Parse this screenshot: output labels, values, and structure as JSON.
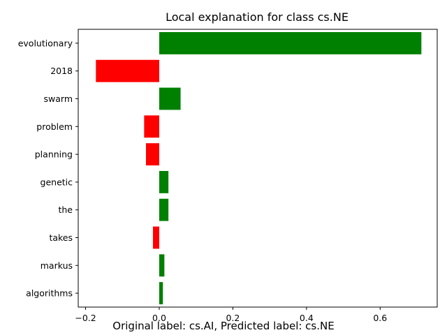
{
  "chart_data": {
    "type": "bar",
    "orientation": "horizontal",
    "title": "Local explanation for class cs.NE",
    "xlabel": "",
    "ylabel": "",
    "categories": [
      "evolutionary",
      "2018",
      "swarm",
      "problem",
      "planning",
      "genetic",
      "the",
      "takes",
      "markus",
      "algorithms"
    ],
    "values": [
      0.712,
      -0.172,
      0.058,
      -0.041,
      -0.036,
      0.025,
      0.025,
      -0.017,
      0.014,
      0.01
    ],
    "xlim": [
      -0.22,
      0.755
    ],
    "xticks": [
      -0.2,
      0.0,
      0.2,
      0.4,
      0.6
    ],
    "xtick_labels": [
      "−0.2",
      "0.0",
      "0.2",
      "0.4",
      "0.6"
    ],
    "grid": false,
    "colors": {
      "positive": "#008000",
      "negative": "#ff0000"
    }
  },
  "caption": "Original label: cs.AI, Predicted label: cs.NE"
}
